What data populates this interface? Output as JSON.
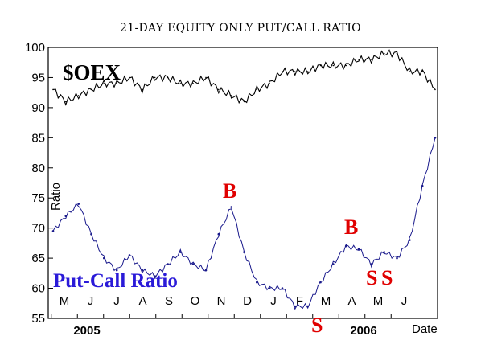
{
  "chart_data": {
    "type": "line",
    "title": "21-DAY EQUITY ONLY PUT/CALL RATIO",
    "ylabel": "Ratio",
    "xlabel": "Date",
    "ylim": [
      55,
      100
    ],
    "y_ticks": [
      55,
      60,
      65,
      70,
      75,
      80,
      85,
      90,
      95,
      100
    ],
    "month_labels": [
      "M",
      "J",
      "J",
      "A",
      "S",
      "O",
      "N",
      "D",
      "J",
      "F",
      "M",
      "A",
      "M",
      "J"
    ],
    "year_labels": [
      "2005",
      "2006"
    ],
    "grid": false,
    "series": [
      {
        "name": "$OEX",
        "color": "#000000",
        "x": [
          0,
          0.5,
          1,
          1.5,
          2,
          2.5,
          3,
          3.5,
          4,
          4.5,
          5,
          5.5,
          6,
          6.5,
          7,
          7.5,
          8,
          8.5,
          9,
          9.5,
          10,
          10.5,
          11,
          11.5,
          12,
          12.5,
          13,
          13.5,
          14,
          14.5,
          15
        ],
        "values": [
          93,
          91,
          92,
          93,
          94,
          94,
          95,
          93,
          95,
          95,
          94,
          94,
          95,
          93,
          92,
          91,
          93,
          94,
          96,
          96,
          96,
          97,
          97,
          97,
          98,
          98,
          99,
          99,
          96,
          96,
          93
        ]
      },
      {
        "name": "Put-Call Ratio",
        "color": "#1a1a8c",
        "x": [
          0,
          0.5,
          1,
          1.5,
          2,
          2.5,
          3,
          3.5,
          4,
          4.5,
          5,
          5.5,
          6,
          6.5,
          7,
          7.5,
          8,
          8.5,
          9,
          9.5,
          10,
          10.5,
          11,
          11.5,
          12,
          12.5,
          13,
          13.5,
          14,
          14.5,
          15
        ],
        "values": [
          69.5,
          72,
          74,
          69,
          65,
          63,
          65.5,
          63,
          62,
          64,
          66,
          64,
          63,
          69,
          73.5,
          66,
          61,
          60,
          60,
          57,
          57,
          61,
          64,
          67,
          66.5,
          64,
          66,
          65,
          68,
          77,
          85
        ]
      }
    ],
    "annotations": {
      "buy_label": "B",
      "sell_label": "S",
      "oex_label": "$OEX",
      "pcr_label": "Put-Call Ratio",
      "buy_color": "#e00000",
      "sell_color": "#e00000",
      "pcr_color": "#2a1ad8"
    }
  }
}
